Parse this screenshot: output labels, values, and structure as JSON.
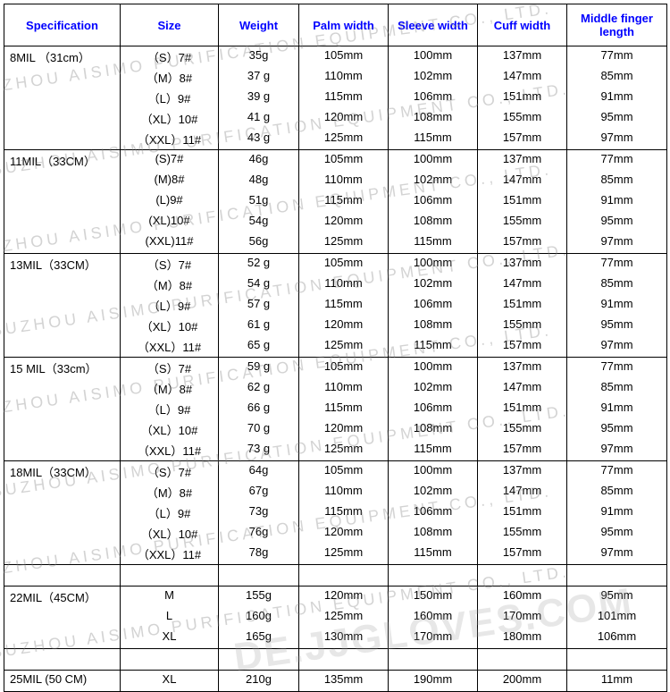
{
  "columns": [
    "Specification",
    "Size",
    "Weight",
    "Palm width",
    "Sleeve width",
    "Cuff width",
    "Middle finger length"
  ],
  "col_widths": [
    "130",
    "110",
    "90",
    "100",
    "100",
    "100",
    "112"
  ],
  "header_color": "#0000ff",
  "border_color": "#000000",
  "groups": [
    {
      "spec": "8MIL （31cm）",
      "rows": [
        [
          "（S）7#",
          "35g",
          "105mm",
          "100mm",
          "137mm",
          "77mm"
        ],
        [
          "（M）8#",
          "37 g",
          "110mm",
          "102mm",
          "147mm",
          "85mm"
        ],
        [
          "（L）9#",
          "39 g",
          "115mm",
          "106mm",
          "151mm",
          "91mm"
        ],
        [
          "（XL）10#",
          "41 g",
          "120mm",
          "108mm",
          "155mm",
          "95mm"
        ],
        [
          "（XXL）11#",
          "43 g",
          "125mm",
          "115mm",
          "157mm",
          "97mm"
        ]
      ]
    },
    {
      "spec": "11MIL（33CM）",
      "rows": [
        [
          "(S)7#",
          "46g",
          "105mm",
          "100mm",
          "137mm",
          "77mm"
        ],
        [
          "(M)8#",
          "48g",
          "110mm",
          "102mm",
          "147mm",
          "85mm"
        ],
        [
          "(L)9#",
          "51g",
          "115mm",
          "106mm",
          "151mm",
          "91mm"
        ],
        [
          "(XL)10#",
          "54g",
          "120mm",
          "108mm",
          "155mm",
          "95mm"
        ],
        [
          "(XXL)11#",
          "56g",
          "125mm",
          "115mm",
          "157mm",
          "97mm"
        ]
      ]
    },
    {
      "spec": "13MIL（33CM）",
      "rows": [
        [
          "（S）7#",
          "52 g",
          "105mm",
          "100mm",
          "137mm",
          "77mm"
        ],
        [
          "（M）8#",
          "54 g",
          "110mm",
          "102mm",
          "147mm",
          "85mm"
        ],
        [
          "（L）9#",
          "57 g",
          "115mm",
          "106mm",
          "151mm",
          "91mm"
        ],
        [
          "（XL）10#",
          "61 g",
          "120mm",
          "108mm",
          "155mm",
          "95mm"
        ],
        [
          "（XXL）11#",
          "65 g",
          "125mm",
          "115mm",
          "157mm",
          "97mm"
        ]
      ]
    },
    {
      "spec": "15 MIL（33cm）",
      "rows": [
        [
          "（S）7#",
          "59 g",
          "105mm",
          "100mm",
          "137mm",
          "77mm"
        ],
        [
          "（M）8#",
          "62 g",
          "110mm",
          "102mm",
          "147mm",
          "85mm"
        ],
        [
          "（L）9#",
          "66 g",
          "115mm",
          "106mm",
          "151mm",
          "91mm"
        ],
        [
          "（XL）10#",
          "70 g",
          "120mm",
          "108mm",
          "155mm",
          "95mm"
        ],
        [
          "（XXL）11#",
          "73 g",
          "125mm",
          "115mm",
          "157mm",
          "97mm"
        ]
      ]
    },
    {
      "spec": "18MIL（33CM）",
      "rows": [
        [
          "（S）7#",
          "64g",
          "105mm",
          "100mm",
          "137mm",
          "77mm"
        ],
        [
          "（M）8#",
          "67g",
          "110mm",
          "102mm",
          "147mm",
          "85mm"
        ],
        [
          "（L）9#",
          "73g",
          "115mm",
          "106mm",
          "151mm",
          "91mm"
        ],
        [
          "（XL）10#",
          "76g",
          "120mm",
          "108mm",
          "155mm",
          "95mm"
        ],
        [
          "（XXL）11#",
          "78g",
          "125mm",
          "115mm",
          "157mm",
          "97mm"
        ]
      ]
    },
    {
      "spec": "",
      "rows": [
        [
          "",
          "",
          "",
          "",
          "",
          ""
        ]
      ]
    },
    {
      "spec": "22MIL（45CM）",
      "rows": [
        [
          "M",
          "155g",
          "120mm",
          "150mm",
          "160mm",
          "95mm"
        ],
        [
          "L",
          "160g",
          "125mm",
          "160mm",
          "170mm",
          "101mm"
        ],
        [
          "XL",
          "165g",
          "130mm",
          "170mm",
          "180mm",
          "106mm"
        ]
      ]
    },
    {
      "spec": "",
      "rows": [
        [
          "",
          "",
          "",
          "",
          "",
          ""
        ]
      ]
    },
    {
      "spec": "25MIL (50 CM)",
      "rows": [
        [
          "XL",
          "210g",
          "135mm",
          "190mm",
          "200mm",
          "11mm"
        ]
      ]
    }
  ],
  "watermark_text": "SUZHOU AISIMO PURIFICATION EQUIPMENT CO., LTD.",
  "watermark2_text": "DE.JJGLOVES.COM"
}
